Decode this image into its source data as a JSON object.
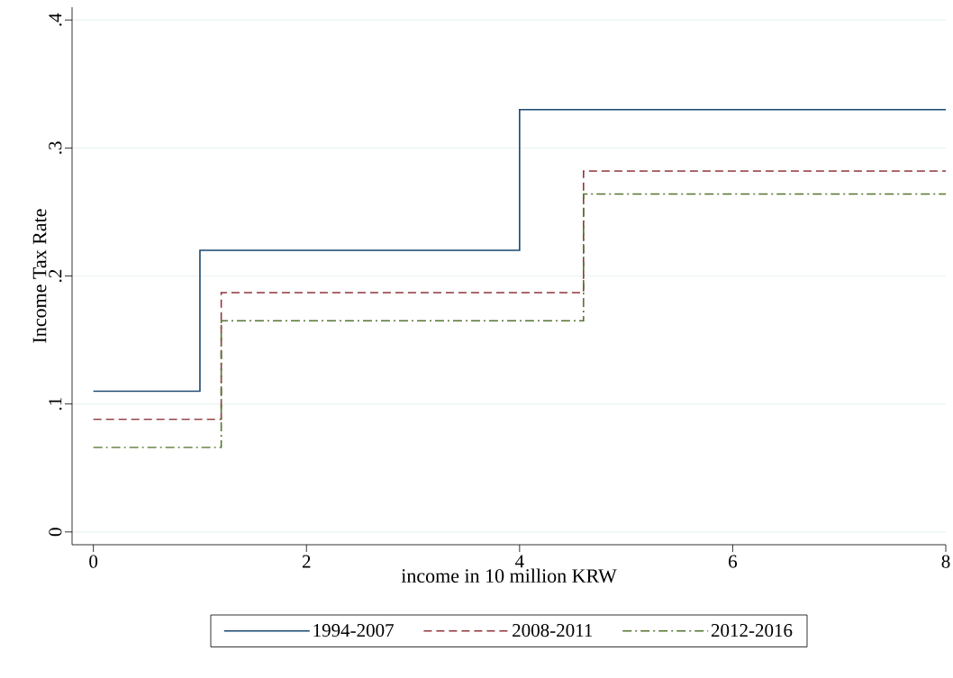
{
  "chart_data": {
    "type": "step",
    "xlabel": "income in 10 million KRW",
    "ylabel": "Income Tax Rate",
    "xlim": [
      -0.2,
      8
    ],
    "ylim": [
      -0.01,
      0.41
    ],
    "xticks": [
      0,
      2,
      4,
      6,
      8
    ],
    "yticks": [
      {
        "value": 0,
        "label": "0"
      },
      {
        "value": 0.1,
        "label": ".1"
      },
      {
        "value": 0.2,
        "label": ".2"
      },
      {
        "value": 0.3,
        "label": ".3"
      },
      {
        "value": 0.4,
        "label": ".4"
      }
    ],
    "grid": "y",
    "legend": "bottom",
    "marker": "none",
    "series": [
      {
        "name": "1994-2007",
        "color": "#1a476f",
        "line_style": "solid",
        "x": [
          0,
          1,
          4,
          8
        ],
        "values": [
          0.11,
          0.22,
          0.33,
          0.33
        ]
      },
      {
        "name": "2008-2011",
        "color": "#90353b",
        "line_style": "dashed",
        "x": [
          0,
          1.2,
          4.6,
          8
        ],
        "values": [
          0.088,
          0.187,
          0.282,
          0.282
        ]
      },
      {
        "name": "2012-2016",
        "color": "#55752f",
        "line_style": "dashdot",
        "x": [
          0,
          1.2,
          4.6,
          8
        ],
        "values": [
          0.066,
          0.165,
          0.264,
          0.264
        ]
      }
    ]
  }
}
